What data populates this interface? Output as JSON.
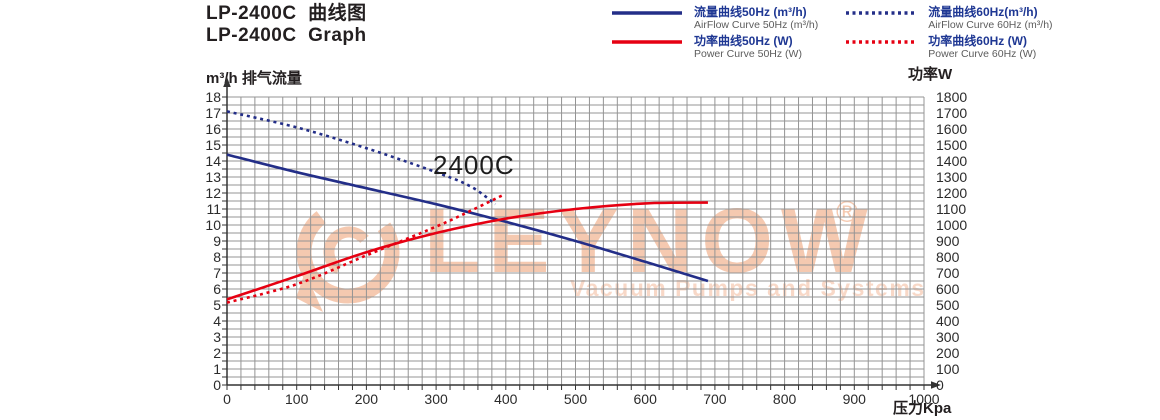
{
  "header": {
    "title_zh": "LP-2400C  曲线图",
    "title_en": "LP-2400C  Graph"
  },
  "legend": {
    "items": [
      {
        "id": "airflow-50hz",
        "label_zh": "流量曲线50Hz (m³/h)",
        "label_en": "AirFlow Curve 50Hz (m³/h)",
        "color": "#232e88",
        "style": "solid"
      },
      {
        "id": "airflow-60hz",
        "label_zh": "流量曲线60Hz(m³/h)",
        "label_en": "AirFlow Curve 60Hz (m³/h)",
        "color": "#232e88",
        "style": "dotted"
      },
      {
        "id": "power-50hz",
        "label_zh": "功率曲线50Hz (W)",
        "label_en": "Power Curve 50Hz (W)",
        "color": "#e60012",
        "style": "solid"
      },
      {
        "id": "power-60hz",
        "label_zh": "功率曲线60Hz (W)",
        "label_en": "Power Curve 60Hz (W)",
        "color": "#e60012",
        "style": "dotted"
      }
    ]
  },
  "axes": {
    "left_title": "m³/h 排气流量",
    "right_title": "功率W",
    "x_title": "压力Kpa"
  },
  "chart_data": {
    "type": "line",
    "title": "LP-2400C 曲线图",
    "annotation": "2400C",
    "x_axis": {
      "label": "压力Kpa",
      "min": 0,
      "max": 1000,
      "label_step": 100,
      "grid_step": 20
    },
    "y_left": {
      "label": "m³/h 排气流量",
      "min": 0,
      "max": 18,
      "label_step": 1,
      "grid_step": 0.5
    },
    "y_right": {
      "label": "功率W",
      "min": 0,
      "max": 1800,
      "label_step": 100
    },
    "legend_position": "top-right",
    "grid": true,
    "series": [
      {
        "name": "AirFlow Curve 50Hz",
        "zh": "流量曲线50Hz",
        "axis": "left",
        "unit": "m³/h",
        "color": "#232e88",
        "style": "solid",
        "points": [
          [
            0,
            14.4
          ],
          [
            100,
            13.3
          ],
          [
            200,
            12.3
          ],
          [
            300,
            11.3
          ],
          [
            400,
            10.2
          ],
          [
            500,
            9.0
          ],
          [
            600,
            7.7
          ],
          [
            690,
            6.5
          ]
        ]
      },
      {
        "name": "AirFlow Curve 60Hz",
        "zh": "流量曲线60Hz",
        "axis": "left",
        "unit": "m³/h",
        "color": "#232e88",
        "style": "dotted",
        "points": [
          [
            0,
            17.1
          ],
          [
            100,
            16.1
          ],
          [
            200,
            14.8
          ],
          [
            300,
            13.3
          ],
          [
            350,
            12.4
          ],
          [
            385,
            11.3
          ]
        ]
      },
      {
        "name": "Power Curve 50Hz",
        "zh": "功率曲线50Hz",
        "axis": "right",
        "unit": "W",
        "color": "#e60012",
        "style": "solid",
        "points": [
          [
            0,
            535
          ],
          [
            100,
            680
          ],
          [
            200,
            830
          ],
          [
            300,
            950
          ],
          [
            400,
            1040
          ],
          [
            500,
            1100
          ],
          [
            600,
            1135
          ],
          [
            690,
            1140
          ]
        ]
      },
      {
        "name": "Power Curve 60Hz",
        "zh": "功率曲线60Hz",
        "axis": "right",
        "unit": "W",
        "color": "#e60012",
        "style": "dotted",
        "points": [
          [
            0,
            515
          ],
          [
            100,
            630
          ],
          [
            200,
            810
          ],
          [
            300,
            990
          ],
          [
            350,
            1090
          ],
          [
            395,
            1185
          ]
        ]
      }
    ]
  },
  "watermark": {
    "text": "LEYNOW",
    "registered": "®",
    "subtitle": "Vacuum Pumps and Systems",
    "color": "#f5c9b0",
    "subtitle_color": "#f8d8c7"
  },
  "colors": {
    "navy": "#232e88",
    "red": "#e60012",
    "grid": "#949494",
    "axis": "#333333",
    "tick_text": "#2b2b2b"
  }
}
